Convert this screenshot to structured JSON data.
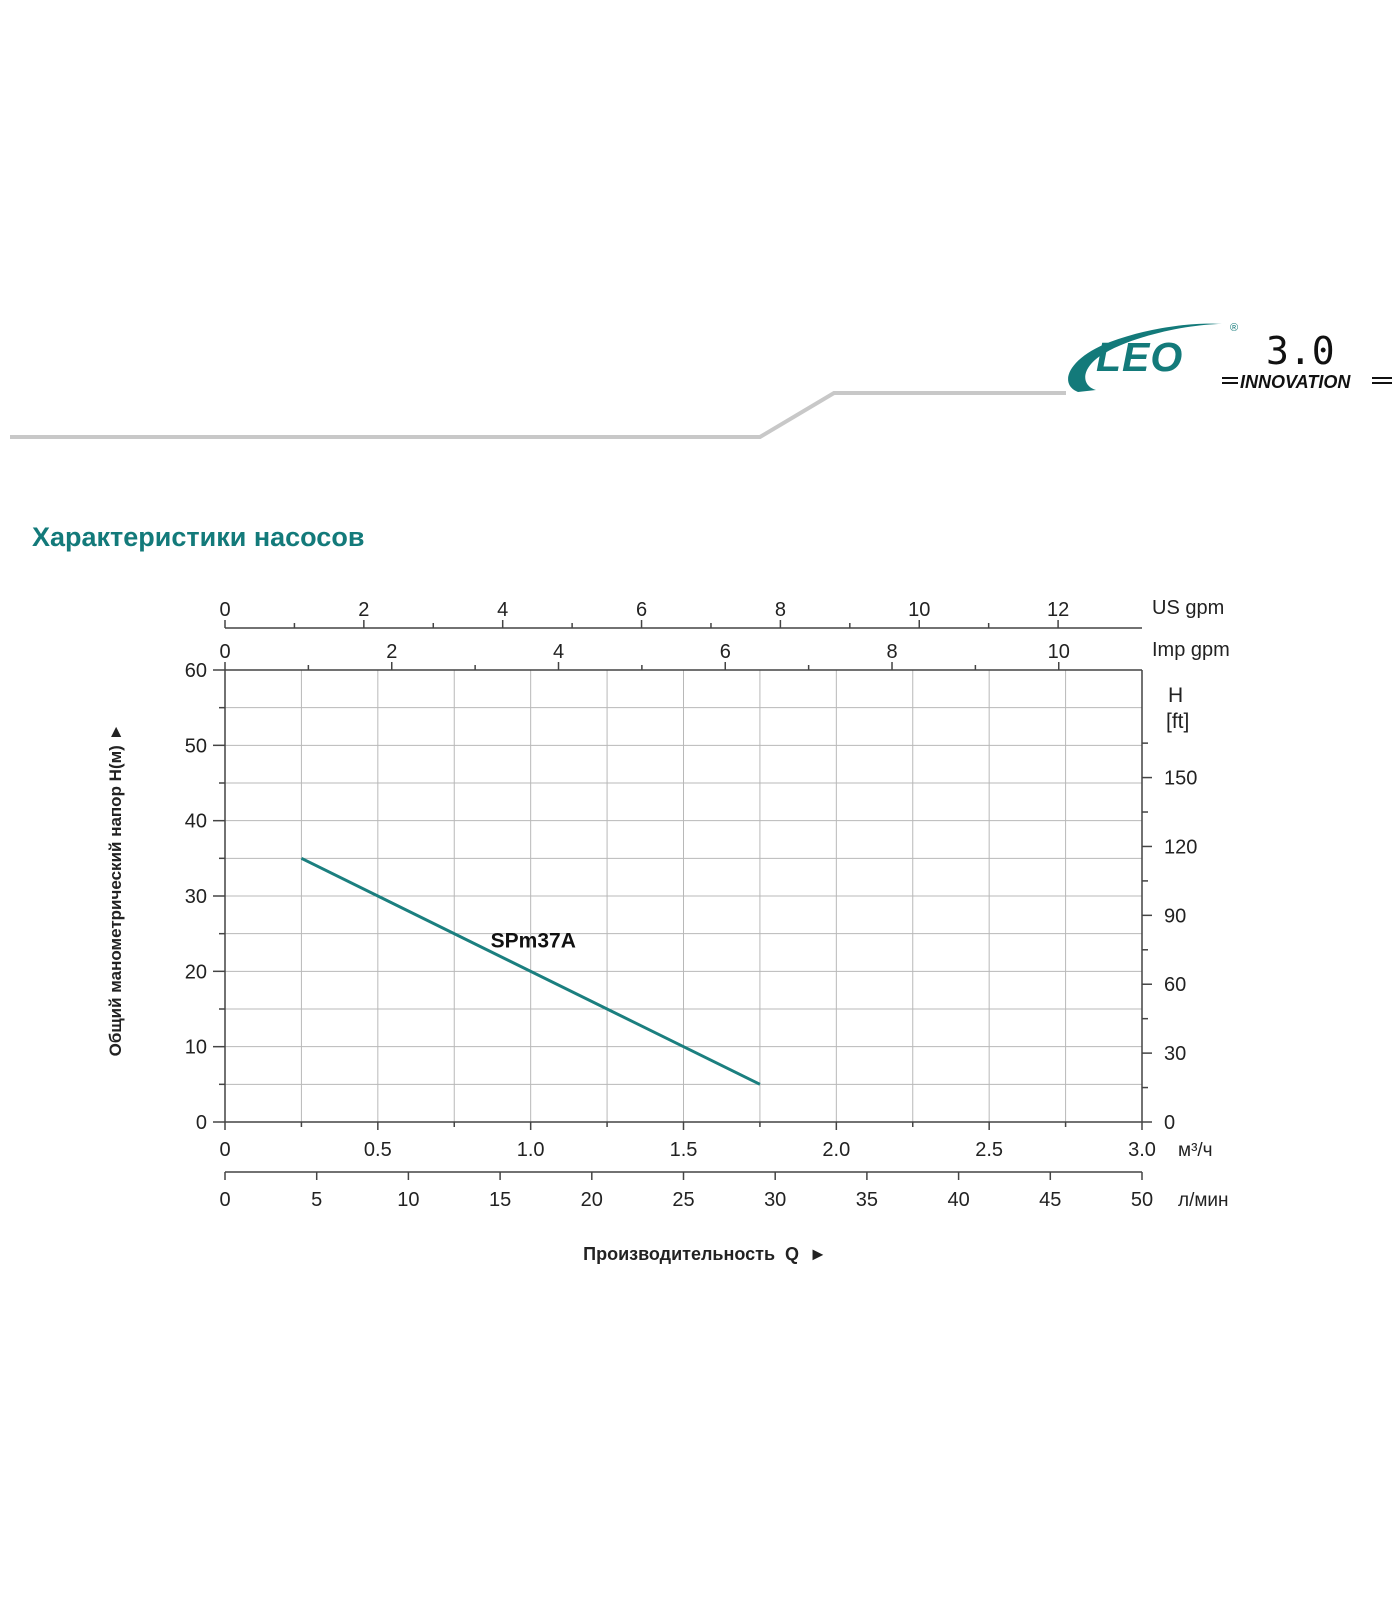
{
  "brand": {
    "logo_text": "LEO",
    "version_text": "3.0",
    "tagline": "INNOVATION",
    "registered_mark": "®",
    "color": "#137a7a"
  },
  "page": {
    "title": "Характеристики насосов"
  },
  "colors": {
    "accent": "#137a7a",
    "curve": "#1b7f7f",
    "grid": "#b8b8b8",
    "axis": "#444444",
    "header_line": "#c8c8c8"
  },
  "chart_data": {
    "type": "line",
    "series": [
      {
        "name": "SPm37A",
        "x": [
          0.25,
          1.75
        ],
        "y": [
          35,
          5
        ]
      }
    ],
    "xlabel": "Производительность  Q  ►",
    "ylabel": "Общий манометрический напор Н(м)  ►",
    "xlim": [
      0,
      3.0
    ],
    "ylim": [
      0,
      60
    ],
    "grid": true,
    "x_ticks": [
      "0",
      "0.5",
      "1.0",
      "1.5",
      "2.0",
      "2.5",
      "3.0"
    ],
    "x_unit": "м³/ч",
    "y_ticks": [
      "0",
      "10",
      "20",
      "30",
      "40",
      "50",
      "60"
    ],
    "secondary_axes": {
      "us_gpm": {
        "label": "US gpm",
        "ticks": [
          "0",
          "2",
          "4",
          "6",
          "8",
          "10",
          "12"
        ]
      },
      "imp_gpm": {
        "label": "Imp gpm",
        "ticks": [
          "0",
          "2",
          "4",
          "6",
          "8",
          "10"
        ]
      },
      "lpm": {
        "unit": "л/мин",
        "ticks": [
          "0",
          "5",
          "10",
          "15",
          "20",
          "25",
          "30",
          "35",
          "40",
          "45",
          "50"
        ]
      },
      "ft": {
        "label_line1": "H",
        "label_line2": "[ft]",
        "ticks": [
          "0",
          "30",
          "60",
          "90",
          "120",
          "150"
        ]
      }
    }
  }
}
